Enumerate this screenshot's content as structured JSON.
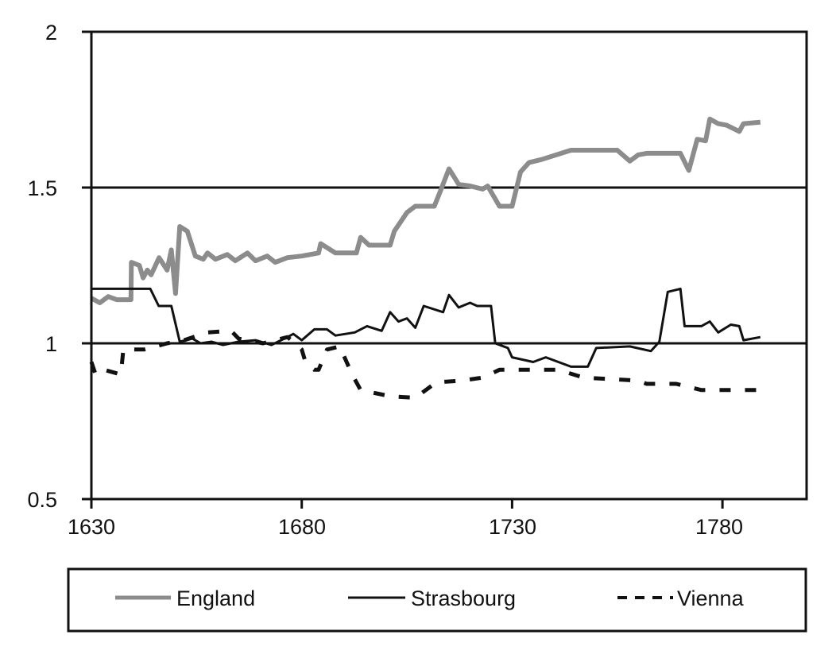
{
  "chart_data": {
    "type": "line",
    "title": "",
    "xlabel": "",
    "ylabel": "",
    "xlim": [
      1630,
      1800
    ],
    "ylim": [
      0.5,
      2
    ],
    "x_ticks": [
      "1630",
      "1680",
      "1730",
      "1780"
    ],
    "y_ticks": [
      "0.5",
      "1",
      "1.5",
      "2"
    ],
    "grid": "horizontal lines at 1 and 1.5",
    "legend_position": "bottom",
    "series": [
      {
        "name": "England",
        "color": "#8c8c8c",
        "style": "solid-thick",
        "points": [
          [
            1630,
            1.145
          ],
          [
            1632,
            1.13
          ],
          [
            1634,
            1.15
          ],
          [
            1636,
            1.14
          ],
          [
            1639.4,
            1.14
          ],
          [
            1639.5,
            1.26
          ],
          [
            1641.4,
            1.25
          ],
          [
            1642.3,
            1.21
          ],
          [
            1643.3,
            1.235
          ],
          [
            1644.2,
            1.22
          ],
          [
            1646.1,
            1.275
          ],
          [
            1648,
            1.235
          ],
          [
            1649,
            1.3
          ],
          [
            1650,
            1.16
          ],
          [
            1651,
            1.375
          ],
          [
            1652.8,
            1.36
          ],
          [
            1654.7,
            1.28
          ],
          [
            1656.6,
            1.27
          ],
          [
            1657.6,
            1.29
          ],
          [
            1659.5,
            1.27
          ],
          [
            1662.3,
            1.285
          ],
          [
            1664.2,
            1.265
          ],
          [
            1667.1,
            1.29
          ],
          [
            1669,
            1.265
          ],
          [
            1671.8,
            1.28
          ],
          [
            1673.7,
            1.26
          ],
          [
            1676.6,
            1.275
          ],
          [
            1680,
            1.28
          ],
          [
            1684,
            1.29
          ],
          [
            1684.5,
            1.32
          ],
          [
            1688,
            1.29
          ],
          [
            1693,
            1.29
          ],
          [
            1694,
            1.34
          ],
          [
            1696,
            1.315
          ],
          [
            1701,
            1.315
          ],
          [
            1702,
            1.36
          ],
          [
            1705,
            1.42
          ],
          [
            1707,
            1.44
          ],
          [
            1711.5,
            1.44
          ],
          [
            1713,
            1.49
          ],
          [
            1715,
            1.56
          ],
          [
            1716.4,
            1.53
          ],
          [
            1717.3,
            1.51
          ],
          [
            1720,
            1.505
          ],
          [
            1723,
            1.495
          ],
          [
            1724.2,
            1.505
          ],
          [
            1727,
            1.44
          ],
          [
            1730,
            1.44
          ],
          [
            1732,
            1.55
          ],
          [
            1734,
            1.58
          ],
          [
            1737,
            1.59
          ],
          [
            1744,
            1.62
          ],
          [
            1755,
            1.62
          ],
          [
            1758,
            1.585
          ],
          [
            1760,
            1.605
          ],
          [
            1762,
            1.61
          ],
          [
            1770,
            1.61
          ],
          [
            1772,
            1.555
          ],
          [
            1774,
            1.655
          ],
          [
            1776,
            1.65
          ],
          [
            1777,
            1.72
          ],
          [
            1779,
            1.705
          ],
          [
            1781,
            1.7
          ],
          [
            1784,
            1.68
          ],
          [
            1785,
            1.705
          ],
          [
            1789,
            1.71
          ]
        ]
      },
      {
        "name": "Strasbourg",
        "color": "#111111",
        "style": "solid-thin",
        "points": [
          [
            1630,
            1.175
          ],
          [
            1644,
            1.175
          ],
          [
            1646,
            1.12
          ],
          [
            1649,
            1.12
          ],
          [
            1651,
            1.005
          ],
          [
            1654,
            1.015
          ],
          [
            1656,
            1.0
          ],
          [
            1658.5,
            1.005
          ],
          [
            1661.3,
            0.995
          ],
          [
            1665,
            1.005
          ],
          [
            1669,
            1.01
          ],
          [
            1672.8,
            0.995
          ],
          [
            1676.6,
            1.02
          ],
          [
            1678,
            1.03
          ],
          [
            1680,
            1.01
          ],
          [
            1683,
            1.045
          ],
          [
            1686,
            1.045
          ],
          [
            1688,
            1.025
          ],
          [
            1692.6,
            1.035
          ],
          [
            1695.5,
            1.055
          ],
          [
            1699,
            1.04
          ],
          [
            1701,
            1.1
          ],
          [
            1703,
            1.07
          ],
          [
            1705,
            1.08
          ],
          [
            1707,
            1.05
          ],
          [
            1709,
            1.12
          ],
          [
            1713.6,
            1.1
          ],
          [
            1715,
            1.155
          ],
          [
            1717.3,
            1.115
          ],
          [
            1720,
            1.13
          ],
          [
            1721.7,
            1.12
          ],
          [
            1725,
            1.12
          ],
          [
            1726,
            1.0
          ],
          [
            1729,
            0.985
          ],
          [
            1730,
            0.955
          ],
          [
            1735,
            0.94
          ],
          [
            1738,
            0.955
          ],
          [
            1744,
            0.925
          ],
          [
            1748,
            0.925
          ],
          [
            1750,
            0.985
          ],
          [
            1758,
            0.99
          ],
          [
            1763,
            0.975
          ],
          [
            1765,
            1.005
          ],
          [
            1767,
            1.165
          ],
          [
            1770,
            1.175
          ],
          [
            1771,
            1.055
          ],
          [
            1775,
            1.055
          ],
          [
            1777,
            1.07
          ],
          [
            1779,
            1.035
          ],
          [
            1782,
            1.06
          ],
          [
            1784,
            1.055
          ],
          [
            1785,
            1.01
          ],
          [
            1789,
            1.02
          ]
        ]
      },
      {
        "name": "Vienna",
        "color": "#111111",
        "style": "dashed",
        "points": [
          [
            1630,
            0.94
          ],
          [
            1631,
            0.9
          ],
          [
            1633,
            0.915
          ],
          [
            1637,
            0.9
          ],
          [
            1637.6,
            0.98
          ],
          [
            1642.5,
            0.98
          ],
          [
            1648,
            1.0
          ],
          [
            1652,
            1.01
          ],
          [
            1657.5,
            1.035
          ],
          [
            1663.2,
            1.04
          ],
          [
            1665,
            1.015
          ],
          [
            1670.8,
            1.0
          ],
          [
            1676.6,
            1.02
          ],
          [
            1678.5,
            1.0
          ],
          [
            1680,
            0.98
          ],
          [
            1681,
            0.935
          ],
          [
            1683,
            0.915
          ],
          [
            1684,
            0.915
          ],
          [
            1686,
            0.98
          ],
          [
            1689,
            0.99
          ],
          [
            1692,
            0.9
          ],
          [
            1694,
            0.85
          ],
          [
            1701,
            0.83
          ],
          [
            1707,
            0.825
          ],
          [
            1712,
            0.875
          ],
          [
            1718,
            0.88
          ],
          [
            1723,
            0.89
          ],
          [
            1727,
            0.915
          ],
          [
            1741,
            0.915
          ],
          [
            1747,
            0.89
          ],
          [
            1760,
            0.88
          ],
          [
            1762,
            0.87
          ],
          [
            1769,
            0.87
          ],
          [
            1775,
            0.85
          ],
          [
            1789,
            0.85
          ]
        ]
      }
    ]
  },
  "legend": {
    "items": [
      "England",
      "Strasbourg",
      "Vienna"
    ]
  }
}
